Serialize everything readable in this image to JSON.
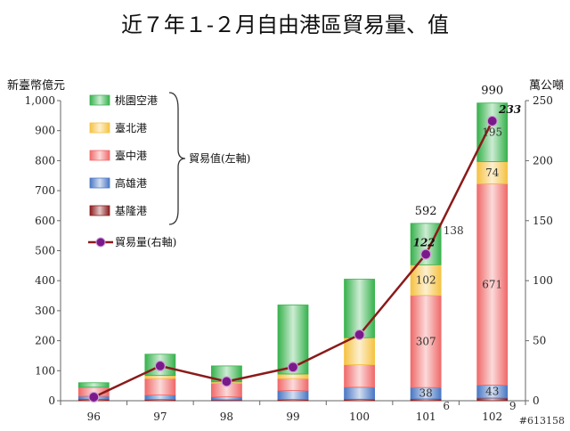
{
  "chart_data": {
    "type": "bar",
    "title": "近７年１-２月自由港區貿易量、值",
    "y_left_label": "新臺幣億元",
    "y_right_label": "萬公噸",
    "categories": [
      "96",
      "97",
      "98",
      "99",
      "100",
      "101",
      "102"
    ],
    "ylim_left": [
      0,
      1000
    ],
    "ylim_right": [
      0,
      250
    ],
    "yticks_left": [
      "0",
      "100",
      "200",
      "300",
      "400",
      "500",
      "600",
      "700",
      "800",
      "900",
      "1,000"
    ],
    "yticks_right": [
      "0",
      "50",
      "100",
      "150",
      "200",
      "250"
    ],
    "stack_order": [
      "基隆港",
      "高雄港",
      "臺中港",
      "臺北港",
      "桃園空港"
    ],
    "series": [
      {
        "name": "桃園空港",
        "color": "#37b24d",
        "values": [
          15,
          71,
          53,
          230,
          195,
          138,
          195
        ]
      },
      {
        "name": "臺北港",
        "color": "#f5c242",
        "values": [
          0,
          10,
          5,
          15,
          90,
          102,
          74
        ]
      },
      {
        "name": "臺中港",
        "color": "#f06a6a",
        "values": [
          30,
          55,
          45,
          40,
          75,
          307,
          671
        ]
      },
      {
        "name": "高雄港",
        "color": "#4a78c4",
        "values": [
          10,
          15,
          10,
          30,
          40,
          38,
          43
        ]
      },
      {
        "name": "基隆港",
        "color": "#8a1c1c",
        "values": [
          5,
          4,
          3,
          4,
          5,
          6,
          9
        ]
      }
    ],
    "line_series": {
      "name": "貿易量(右軸)",
      "color": "#8b1a1a",
      "marker_color": "#7a1a8a",
      "values": [
        3,
        29,
        16,
        28,
        55,
        122,
        233
      ]
    },
    "bracket_label": "貿易值(左軸)",
    "total_labels": [
      {
        "category": "101",
        "text": "592"
      },
      {
        "category": "102",
        "text": "990"
      }
    ],
    "segment_labels": [
      {
        "category": "101",
        "series": "桃園空港",
        "text": "138"
      },
      {
        "category": "101",
        "series": "臺北港",
        "text": "102"
      },
      {
        "category": "101",
        "series": "臺中港",
        "text": "307"
      },
      {
        "category": "101",
        "series": "高雄港",
        "text": "38"
      },
      {
        "category": "101",
        "series": "基隆港",
        "text": "6"
      },
      {
        "category": "102",
        "series": "桃園空港",
        "text": "195"
      },
      {
        "category": "102",
        "series": "臺北港",
        "text": "74"
      },
      {
        "category": "102",
        "series": "臺中港",
        "text": "671"
      },
      {
        "category": "102",
        "series": "高雄港",
        "text": "43"
      },
      {
        "category": "102",
        "series": "基隆港",
        "text": "9"
      }
    ],
    "line_labels": [
      {
        "category": "101",
        "text": "122"
      },
      {
        "category": "102",
        "text": "233"
      }
    ],
    "legend_position": "top-left",
    "grid": false
  },
  "watermark": "#613158"
}
